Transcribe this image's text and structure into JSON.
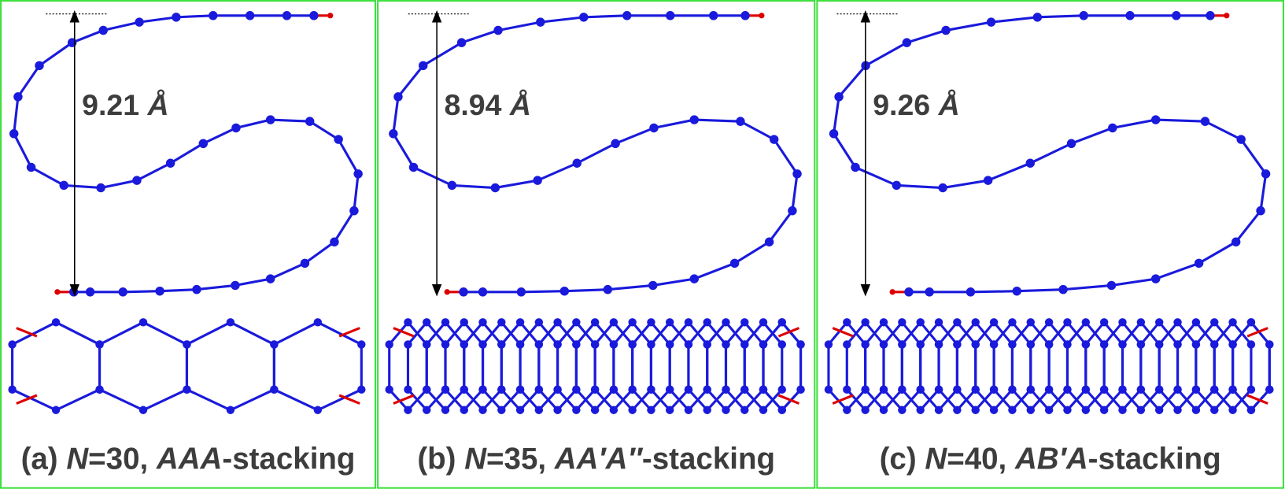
{
  "panels": [
    {
      "distance": {
        "value": "9.21",
        "unit": "Å"
      },
      "caption": {
        "label": "(a)",
        "n": "N",
        "n_value": "=30,",
        "stacking": "AAA",
        "suffix": "-stacking"
      }
    },
    {
      "distance": {
        "value": "8.94",
        "unit": "Å"
      },
      "caption": {
        "label": "(b)",
        "n": "N",
        "n_value": "=35,",
        "stacking": "AA′A″",
        "suffix": "-stacking"
      }
    },
    {
      "distance": {
        "value": "9.26",
        "unit": "Å"
      },
      "caption": {
        "label": "(c)",
        "n": "N",
        "n_value": "=40,",
        "stacking": "AB′A",
        "suffix": "-stacking"
      }
    }
  ]
}
